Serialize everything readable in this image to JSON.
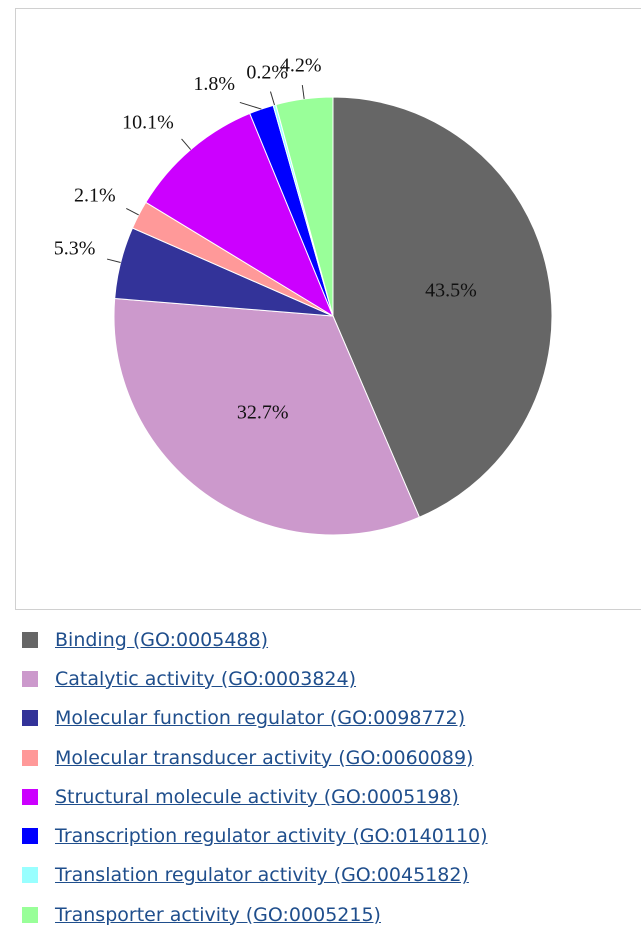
{
  "chart_data": {
    "type": "pie",
    "categories": [
      "Binding (GO:0005488)",
      "Catalytic activity (GO:0003824)",
      "Molecular function regulator (GO:0098772)",
      "Molecular transducer activity (GO:0060089)",
      "Structural molecule activity (GO:0005198)",
      "Transcription regulator activity (GO:0140110)",
      "Translation regulator activity (GO:0045182)",
      "Transporter activity (GO:0005215)"
    ],
    "values": [
      43.5,
      32.7,
      5.3,
      2.1,
      10.1,
      1.8,
      0.2,
      4.2
    ],
    "value_labels": [
      "43.5%",
      "32.7%",
      "5.3%",
      "2.1%",
      "10.1%",
      "1.8%",
      "0.2%",
      "4.2%"
    ],
    "colors": [
      "#666666",
      "#cc99cc",
      "#333399",
      "#ff9999",
      "#cc00ff",
      "#0000ff",
      "#99ffff",
      "#99ff99"
    ]
  }
}
